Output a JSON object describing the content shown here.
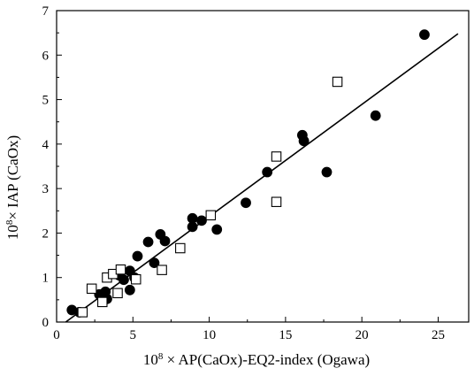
{
  "chart_data": {
    "type": "scatter",
    "title": "",
    "xlabel_prefix": "10",
    "xlabel_exp": "8",
    "xlabel_rest": " × AP(CaOx)-EQ2-index (Ogawa)",
    "ylabel_prefix": "10",
    "ylabel_exp": "8",
    "ylabel_rest": "× IAP (CaOx)",
    "xlim": [
      0,
      27
    ],
    "ylim": [
      0,
      7
    ],
    "x_ticks": [
      0,
      5,
      10,
      15,
      20,
      25
    ],
    "y_ticks": [
      0,
      1,
      2,
      3,
      4,
      5,
      6,
      7
    ],
    "grid": false,
    "series": [
      {
        "marker": "filled-circle",
        "color": "#000000",
        "points": [
          [
            1.0,
            0.27
          ],
          [
            1.5,
            0.22
          ],
          [
            2.8,
            0.62
          ],
          [
            3.2,
            0.68
          ],
          [
            3.3,
            0.52
          ],
          [
            4.1,
            1.05
          ],
          [
            4.4,
            0.95
          ],
          [
            4.8,
            1.15
          ],
          [
            4.8,
            0.72
          ],
          [
            5.1,
            1.0
          ],
          [
            5.3,
            1.48
          ],
          [
            6.0,
            1.8
          ],
          [
            6.4,
            1.33
          ],
          [
            6.8,
            1.97
          ],
          [
            7.1,
            1.82
          ],
          [
            8.9,
            2.33
          ],
          [
            8.9,
            2.14
          ],
          [
            9.5,
            2.28
          ],
          [
            10.5,
            2.08
          ],
          [
            12.4,
            2.68
          ],
          [
            13.8,
            3.37
          ],
          [
            16.1,
            4.2
          ],
          [
            16.2,
            4.07
          ],
          [
            17.7,
            3.37
          ],
          [
            20.9,
            4.64
          ],
          [
            24.1,
            6.46
          ]
        ]
      },
      {
        "marker": "open-square",
        "color": "#000000",
        "points": [
          [
            1.7,
            0.22
          ],
          [
            2.3,
            0.75
          ],
          [
            3.0,
            0.45
          ],
          [
            3.3,
            1.0
          ],
          [
            3.7,
            1.08
          ],
          [
            4.0,
            0.65
          ],
          [
            4.2,
            1.18
          ],
          [
            5.2,
            0.96
          ],
          [
            6.9,
            1.17
          ],
          [
            8.1,
            1.66
          ],
          [
            10.1,
            2.4
          ],
          [
            14.4,
            3.72
          ],
          [
            14.4,
            2.7
          ],
          [
            18.4,
            5.4
          ]
        ]
      }
    ],
    "fit_line": {
      "x": [
        0.6,
        26.3
      ],
      "y": [
        0.0,
        6.48
      ]
    }
  }
}
